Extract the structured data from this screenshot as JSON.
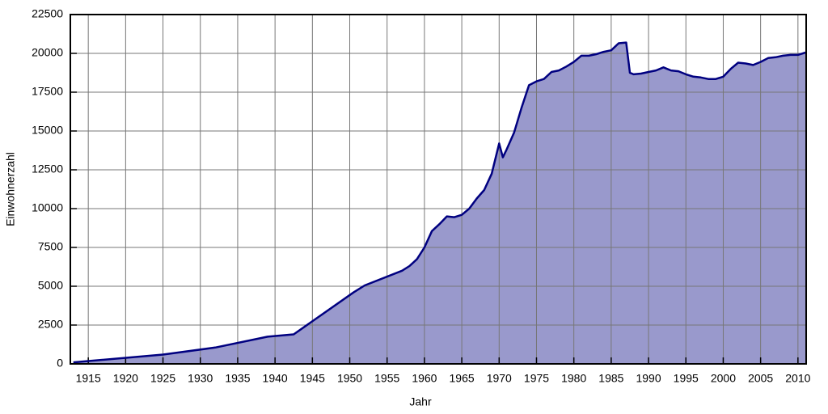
{
  "chart_data": {
    "type": "area",
    "x_label": "Jahr",
    "y_label": "Einwohnerzahl",
    "x": [
      1913,
      1925,
      1932,
      1939,
      1942.5,
      1950.5,
      1952,
      1957,
      1958,
      1959,
      1960,
      1961,
      1962,
      1963,
      1964,
      1965,
      1966,
      1967,
      1968,
      1969,
      1970,
      1970.5,
      1971,
      1972,
      1973,
      1974,
      1975,
      1976,
      1977,
      1978,
      1979,
      1980,
      1981,
      1982,
      1983,
      1984,
      1985,
      1986,
      1987,
      1987.5,
      1988,
      1989,
      1990,
      1991,
      1992,
      1993,
      1994,
      1995,
      1996,
      1997,
      1998,
      1999,
      2000,
      2001,
      2002,
      2003,
      2004,
      2005,
      2006,
      2007,
      2008,
      2009,
      2010,
      2011
    ],
    "values": [
      100,
      600,
      1050,
      1750,
      1900,
      4600,
      5050,
      6000,
      6300,
      6750,
      7500,
      8550,
      9000,
      9500,
      9450,
      9600,
      10000,
      10650,
      11200,
      12250,
      14200,
      13300,
      13800,
      14900,
      16500,
      17950,
      18200,
      18350,
      18800,
      18900,
      19150,
      19450,
      19850,
      19850,
      19950,
      20100,
      20200,
      20650,
      20700,
      18750,
      18650,
      18700,
      18800,
      18900,
      19100,
      18900,
      18850,
      18650,
      18500,
      18450,
      18350,
      18350,
      18500,
      19000,
      19400,
      19350,
      19250,
      19450,
      19700,
      19750,
      19850,
      19900,
      19900,
      20050
    ],
    "fill": "#9999cc",
    "color": "#000080",
    "xlim": [
      1912.6,
      2011.1
    ],
    "ylim": [
      0,
      22500
    ],
    "xticks": [
      1915,
      1920,
      1925,
      1930,
      1935,
      1940,
      1945,
      1950,
      1955,
      1960,
      1965,
      1970,
      1975,
      1980,
      1985,
      1990,
      1995,
      2000,
      2005,
      2010
    ],
    "yticks": [
      0,
      2500,
      5000,
      7500,
      10000,
      12500,
      15000,
      17500,
      20000,
      22500
    ],
    "grid": true
  }
}
